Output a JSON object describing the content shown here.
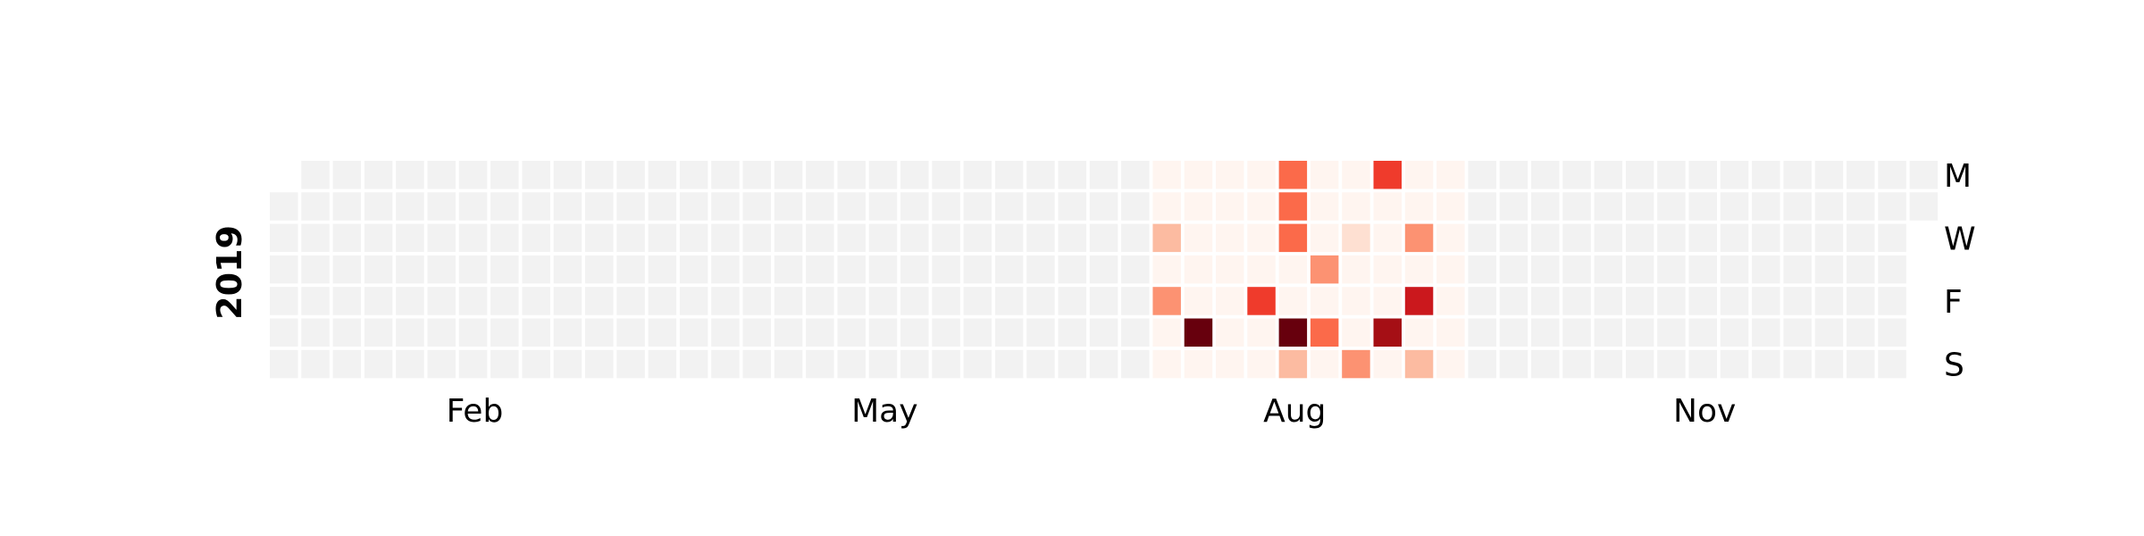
{
  "chart_data": {
    "type": "heatmap",
    "title": "",
    "year": "2019",
    "month_labels": [
      {
        "label": "Feb",
        "week": 6.5
      },
      {
        "label": "May",
        "week": 19.5
      },
      {
        "label": "Aug",
        "week": 32.5
      },
      {
        "label": "Nov",
        "week": 45.5
      }
    ],
    "day_labels": [
      {
        "label": "M",
        "day": 0
      },
      {
        "label": "W",
        "day": 2
      },
      {
        "label": "F",
        "day": 4
      },
      {
        "label": "S",
        "day": 6
      }
    ],
    "colors": {
      "empty": "#f2f2f2",
      "scale": [
        "#fff5f0",
        "#fee0d2",
        "#fcbba1",
        "#fc9272",
        "#fb6a4a",
        "#ef3b2c",
        "#cb181d",
        "#a50f15",
        "#67000d"
      ]
    },
    "vmax": 8,
    "first_day_offset": 1,
    "last_day_index": 1,
    "num_weeks": 53,
    "active_weeks": [
      28,
      37
    ],
    "values_note": "rows = days Mon..Sun, columns = weeks 28..37",
    "values": [
      [
        0,
        0,
        0,
        0,
        4,
        0,
        0,
        5,
        0,
        0
      ],
      [
        0,
        0,
        0,
        0,
        4,
        0,
        0,
        0,
        0,
        0
      ],
      [
        2,
        0,
        0,
        0,
        4,
        0,
        1,
        0,
        3,
        0
      ],
      [
        0,
        0,
        0,
        0,
        0,
        3,
        0,
        0,
        0,
        0
      ],
      [
        3,
        0,
        0,
        5,
        0,
        0,
        0,
        0,
        6,
        0
      ],
      [
        0,
        8,
        0,
        0,
        8,
        4,
        0,
        7,
        0,
        0
      ],
      [
        0,
        0,
        0,
        0,
        2,
        0,
        3,
        0,
        2,
        0
      ]
    ]
  }
}
